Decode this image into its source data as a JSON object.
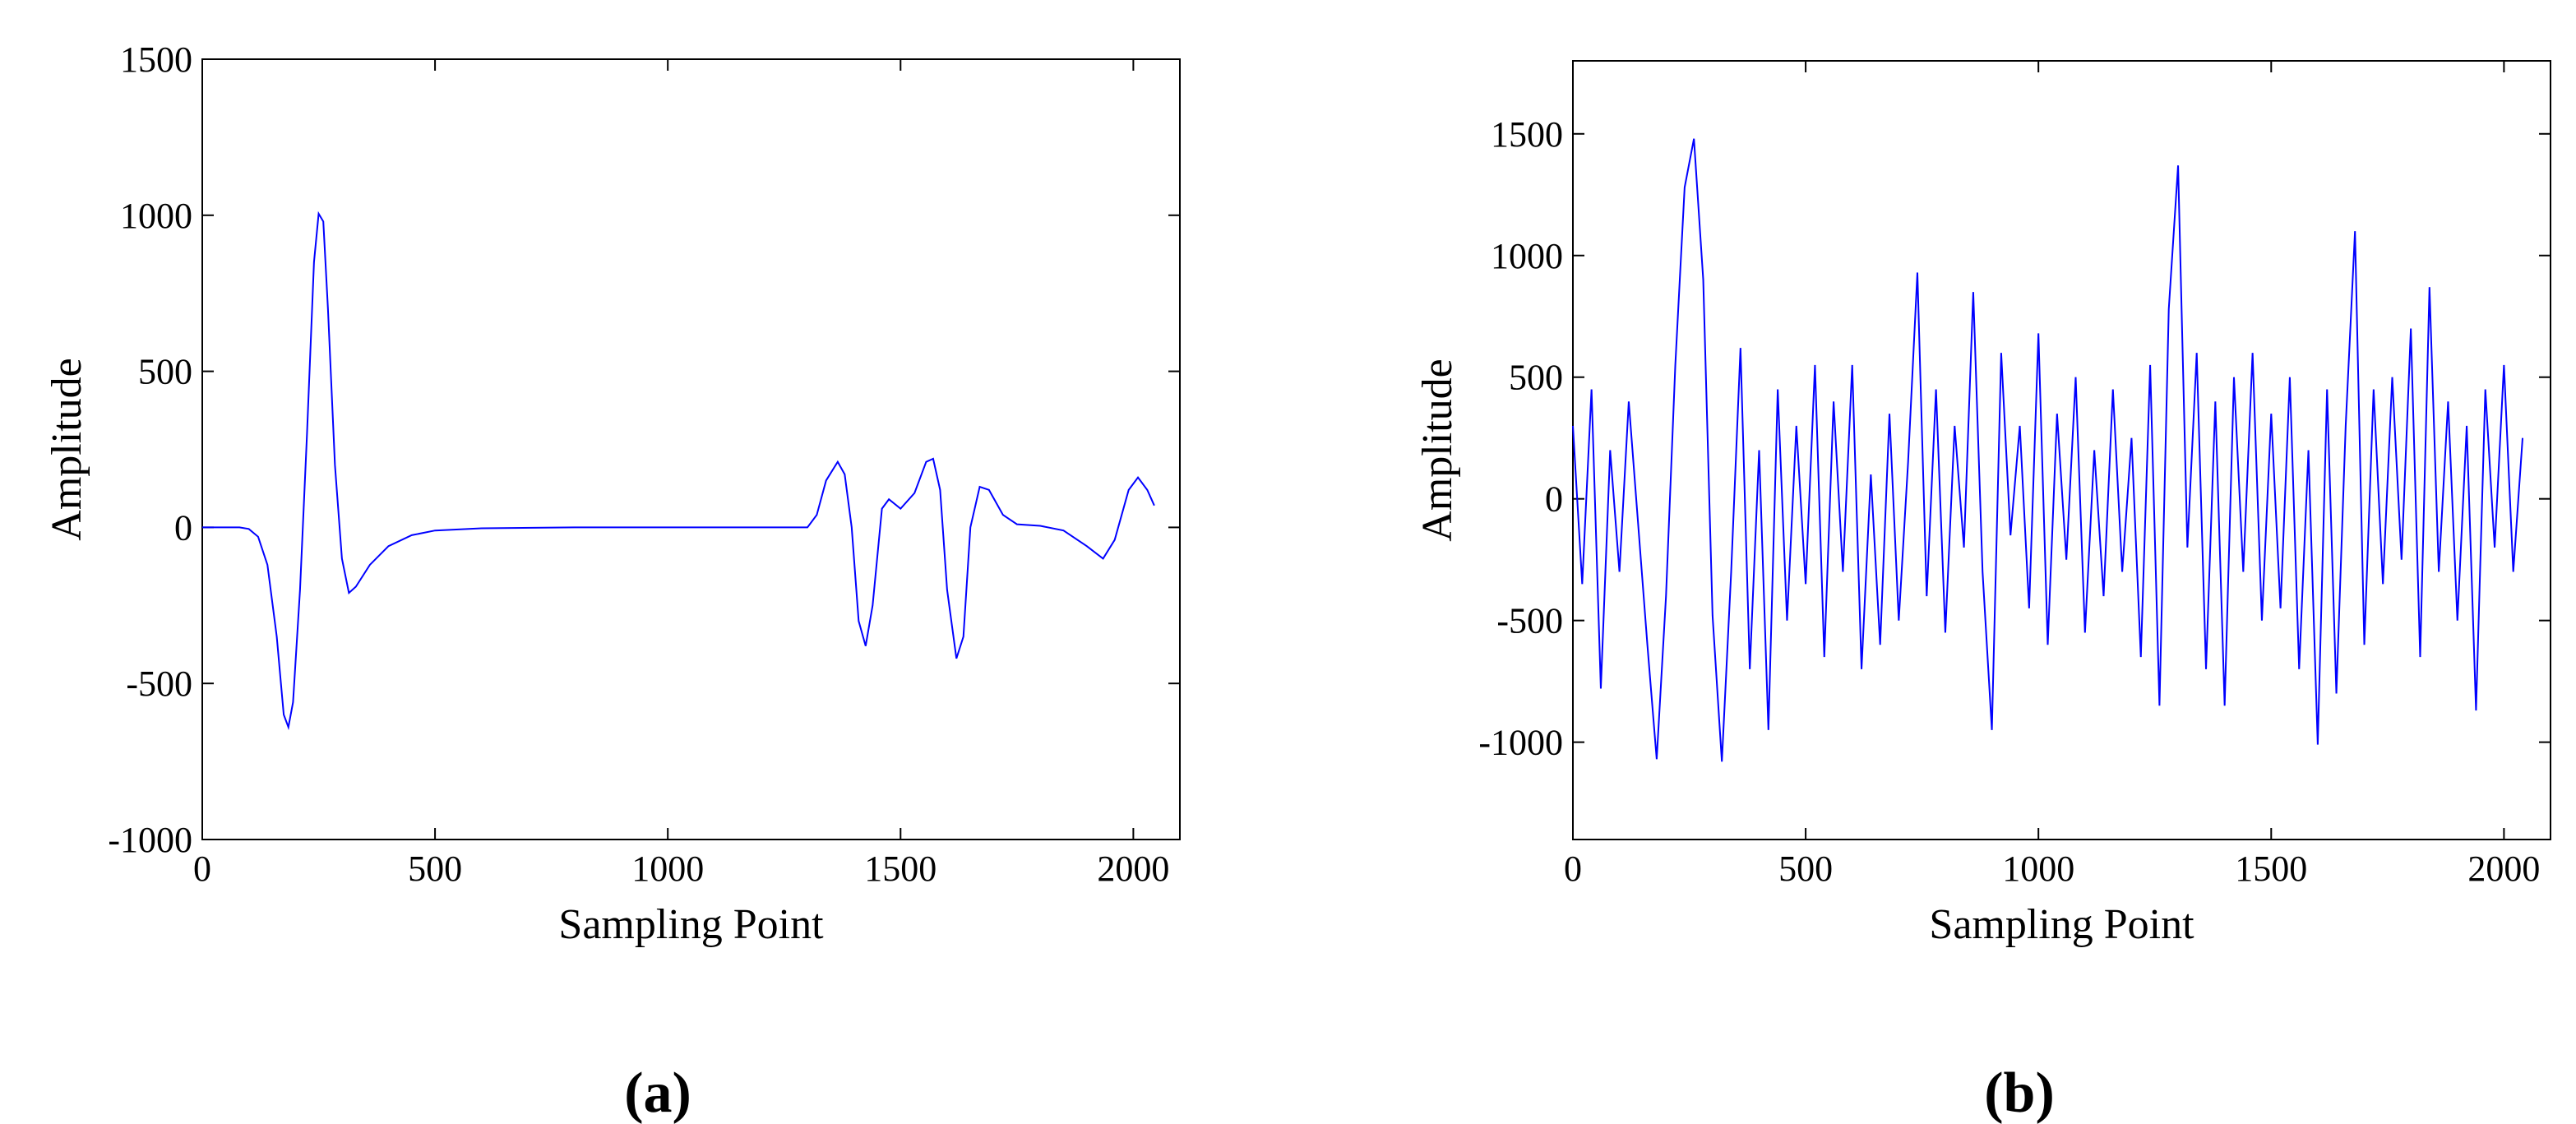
{
  "chart_data": [
    {
      "type": "line",
      "caption": "(a)",
      "x_label": "Sampling Point",
      "y_label": "Amplitude",
      "xlim": [
        0,
        2100
      ],
      "xticks": [
        0,
        500,
        1000,
        1500,
        2000
      ],
      "ylim": [
        -1000,
        1500
      ],
      "yticks": [
        -1000,
        -500,
        0,
        500,
        1000,
        1500
      ],
      "grid": false,
      "series": [
        {
          "color": "#0000ff",
          "x": [
            0,
            80,
            100,
            120,
            140,
            160,
            175,
            185,
            195,
            210,
            225,
            240,
            250,
            260,
            270,
            285,
            300,
            315,
            330,
            360,
            400,
            450,
            500,
            600,
            800,
            1000,
            1200,
            1300,
            1320,
            1340,
            1365,
            1380,
            1395,
            1410,
            1425,
            1440,
            1460,
            1475,
            1500,
            1530,
            1555,
            1570,
            1585,
            1600,
            1620,
            1635,
            1650,
            1670,
            1690,
            1720,
            1750,
            1800,
            1850,
            1900,
            1935,
            1960,
            1990,
            2010,
            2030,
            2045
          ],
          "values": [
            0,
            0,
            -5,
            -30,
            -120,
            -350,
            -600,
            -640,
            -560,
            -200,
            300,
            850,
            1005,
            980,
            700,
            200,
            -100,
            -210,
            -190,
            -120,
            -60,
            -25,
            -10,
            -3,
            0,
            0,
            0,
            0,
            40,
            150,
            210,
            170,
            0,
            -300,
            -380,
            -250,
            60,
            90,
            60,
            110,
            210,
            220,
            120,
            -200,
            -420,
            -350,
            0,
            130,
            120,
            40,
            10,
            5,
            -10,
            -60,
            -100,
            -40,
            120,
            160,
            120,
            70
          ]
        }
      ]
    },
    {
      "type": "line",
      "caption": "(b)",
      "x_label": "Sampling Point",
      "y_label": "Amplitude",
      "xlim": [
        0,
        2100
      ],
      "xticks": [
        0,
        500,
        1000,
        1500,
        2000
      ],
      "ylim": [
        -1400,
        1800
      ],
      "yticks": [
        -1000,
        -500,
        0,
        500,
        1000,
        1500
      ],
      "grid": false,
      "series": [
        {
          "color": "#0000ff",
          "x": [
            0,
            20,
            40,
            60,
            80,
            100,
            120,
            140,
            160,
            180,
            200,
            220,
            240,
            260,
            280,
            300,
            320,
            340,
            360,
            380,
            400,
            420,
            440,
            460,
            480,
            500,
            520,
            540,
            560,
            580,
            600,
            620,
            640,
            660,
            680,
            700,
            720,
            740,
            760,
            780,
            800,
            820,
            840,
            860,
            880,
            900,
            920,
            940,
            960,
            980,
            1000,
            1020,
            1040,
            1060,
            1080,
            1100,
            1120,
            1140,
            1160,
            1180,
            1200,
            1220,
            1240,
            1260,
            1280,
            1300,
            1320,
            1340,
            1360,
            1380,
            1400,
            1420,
            1440,
            1460,
            1480,
            1500,
            1520,
            1540,
            1560,
            1580,
            1600,
            1620,
            1640,
            1660,
            1680,
            1700,
            1720,
            1740,
            1760,
            1780,
            1800,
            1820,
            1840,
            1860,
            1880,
            1900,
            1920,
            1940,
            1960,
            1980,
            2000,
            2020,
            2040
          ],
          "values": [
            300,
            -350,
            450,
            -780,
            200,
            -300,
            400,
            -100,
            -600,
            -1070,
            -400,
            550,
            1280,
            1480,
            900,
            -480,
            -1080,
            -300,
            620,
            -700,
            200,
            -950,
            450,
            -500,
            300,
            -350,
            550,
            -650,
            400,
            -300,
            550,
            -700,
            100,
            -600,
            350,
            -500,
            150,
            930,
            -400,
            450,
            -550,
            300,
            -200,
            850,
            -300,
            -950,
            600,
            -150,
            300,
            -450,
            680,
            -600,
            350,
            -250,
            500,
            -550,
            200,
            -400,
            450,
            -300,
            250,
            -650,
            550,
            -850,
            780,
            1370,
            -200,
            600,
            -700,
            400,
            -850,
            500,
            -300,
            600,
            -500,
            350,
            -450,
            500,
            -700,
            200,
            -1010,
            450,
            -800,
            300,
            1100,
            -600,
            450,
            -350,
            500,
            -250,
            700,
            -650,
            870,
            -300,
            400,
            -500,
            300,
            -870,
            450,
            -200,
            550,
            -300,
            250
          ]
        }
      ]
    }
  ]
}
